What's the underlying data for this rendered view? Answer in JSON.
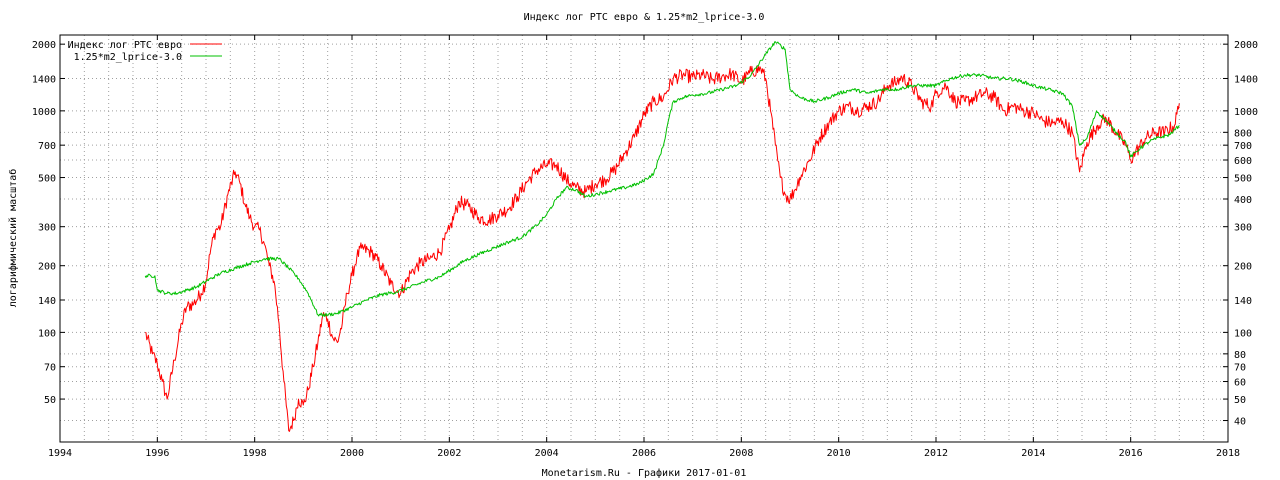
{
  "chart_data": {
    "type": "line",
    "title": "Индекс лог РТС евро & 1.25*m2_lprice-3.0",
    "xlabel": "Monetarism.Ru - Графики 2017-01-01",
    "ylabel": "логарифмический масштаб",
    "x_range": [
      1994,
      2018
    ],
    "y_range": [
      32,
      2200
    ],
    "y_scale": "log",
    "grid": true,
    "legend_position": "top-left",
    "x_ticks": [
      "1994",
      "1996",
      "1998",
      "2000",
      "2002",
      "2004",
      "2006",
      "2008",
      "2010",
      "2012",
      "2014",
      "2016",
      "2018"
    ],
    "y_ticks_left": [
      "50",
      "70",
      "100",
      "140",
      "200",
      "300",
      "500",
      "700",
      "1000",
      "1400",
      "2000"
    ],
    "y_ticks_right": [
      "40",
      "50",
      "60",
      "70",
      "80",
      "100",
      "140",
      "200",
      "300",
      "400",
      "500",
      "600",
      "700",
      "800",
      "1000",
      "1400",
      "2000"
    ],
    "series": [
      {
        "name": "Индекс лог РТС евро",
        "color": "#ff0000",
        "points": [
          [
            1995.75,
            100
          ],
          [
            1995.9,
            80
          ],
          [
            1996.0,
            72
          ],
          [
            1996.1,
            60
          ],
          [
            1996.2,
            50
          ],
          [
            1996.35,
            75
          ],
          [
            1996.5,
            110
          ],
          [
            1996.6,
            130
          ],
          [
            1996.75,
            135
          ],
          [
            1996.9,
            150
          ],
          [
            1997.0,
            170
          ],
          [
            1997.1,
            240
          ],
          [
            1997.2,
            290
          ],
          [
            1997.3,
            300
          ],
          [
            1997.45,
            420
          ],
          [
            1997.6,
            530
          ],
          [
            1997.7,
            470
          ],
          [
            1997.8,
            380
          ],
          [
            1997.9,
            330
          ],
          [
            1998.0,
            300
          ],
          [
            1998.1,
            290
          ],
          [
            1998.2,
            250
          ],
          [
            1998.3,
            200
          ],
          [
            1998.4,
            170
          ],
          [
            1998.5,
            110
          ],
          [
            1998.6,
            60
          ],
          [
            1998.7,
            36
          ],
          [
            1998.8,
            40
          ],
          [
            1998.9,
            50
          ],
          [
            1999.0,
            47
          ],
          [
            1999.1,
            55
          ],
          [
            1999.2,
            70
          ],
          [
            1999.3,
            90
          ],
          [
            1999.4,
            120
          ],
          [
            1999.5,
            115
          ],
          [
            1999.6,
            95
          ],
          [
            1999.7,
            90
          ],
          [
            1999.8,
            110
          ],
          [
            1999.9,
            150
          ],
          [
            2000.0,
            180
          ],
          [
            2000.1,
            220
          ],
          [
            2000.2,
            240
          ],
          [
            2000.4,
            230
          ],
          [
            2000.6,
            200
          ],
          [
            2000.8,
            165
          ],
          [
            2001.0,
            150
          ],
          [
            2001.2,
            185
          ],
          [
            2001.4,
            205
          ],
          [
            2001.6,
            215
          ],
          [
            2001.8,
            230
          ],
          [
            2002.0,
            290
          ],
          [
            2002.2,
            390
          ],
          [
            2002.4,
            370
          ],
          [
            2002.6,
            330
          ],
          [
            2002.8,
            320
          ],
          [
            2003.0,
            340
          ],
          [
            2003.2,
            360
          ],
          [
            2003.4,
            410
          ],
          [
            2003.6,
            480
          ],
          [
            2003.8,
            540
          ],
          [
            2004.0,
            570
          ],
          [
            2004.2,
            570
          ],
          [
            2004.4,
            490
          ],
          [
            2004.6,
            450
          ],
          [
            2004.8,
            430
          ],
          [
            2005.0,
            470
          ],
          [
            2005.2,
            490
          ],
          [
            2005.4,
            540
          ],
          [
            2005.6,
            640
          ],
          [
            2005.8,
            760
          ],
          [
            2006.0,
            960
          ],
          [
            2006.2,
            1100
          ],
          [
            2006.4,
            1150
          ],
          [
            2006.6,
            1400
          ],
          [
            2006.8,
            1450
          ],
          [
            2007.0,
            1420
          ],
          [
            2007.2,
            1450
          ],
          [
            2007.4,
            1380
          ],
          [
            2007.6,
            1430
          ],
          [
            2007.8,
            1470
          ],
          [
            2008.0,
            1350
          ],
          [
            2008.2,
            1500
          ],
          [
            2008.4,
            1550
          ],
          [
            2008.5,
            1400
          ],
          [
            2008.6,
            1000
          ],
          [
            2008.7,
            700
          ],
          [
            2008.8,
            500
          ],
          [
            2008.9,
            420
          ],
          [
            2009.0,
            400
          ],
          [
            2009.1,
            440
          ],
          [
            2009.2,
            500
          ],
          [
            2009.4,
            600
          ],
          [
            2009.6,
            750
          ],
          [
            2009.8,
            880
          ],
          [
            2010.0,
            1000
          ],
          [
            2010.2,
            1050
          ],
          [
            2010.4,
            1000
          ],
          [
            2010.6,
            1050
          ],
          [
            2010.8,
            1100
          ],
          [
            2011.0,
            1300
          ],
          [
            2011.2,
            1350
          ],
          [
            2011.3,
            1420
          ],
          [
            2011.5,
            1300
          ],
          [
            2011.7,
            1100
          ],
          [
            2011.9,
            1050
          ],
          [
            2012.0,
            1200
          ],
          [
            2012.2,
            1300
          ],
          [
            2012.4,
            1100
          ],
          [
            2012.6,
            1100
          ],
          [
            2012.8,
            1150
          ],
          [
            2013.0,
            1200
          ],
          [
            2013.2,
            1150
          ],
          [
            2013.4,
            1000
          ],
          [
            2013.6,
            1050
          ],
          [
            2013.8,
            1000
          ],
          [
            2014.0,
            980
          ],
          [
            2014.2,
            900
          ],
          [
            2014.4,
            880
          ],
          [
            2014.6,
            900
          ],
          [
            2014.8,
            800
          ],
          [
            2014.95,
            530
          ],
          [
            2015.1,
            720
          ],
          [
            2015.3,
            850
          ],
          [
            2015.4,
            900
          ],
          [
            2015.5,
            920
          ],
          [
            2015.7,
            800
          ],
          [
            2015.9,
            700
          ],
          [
            2016.0,
            600
          ],
          [
            2016.1,
            650
          ],
          [
            2016.3,
            750
          ],
          [
            2016.5,
            800
          ],
          [
            2016.7,
            800
          ],
          [
            2016.9,
            860
          ],
          [
            2017.0,
            1080
          ]
        ]
      },
      {
        "name": "1.25*m2_lprice-3.0",
        "color": "#00c000",
        "points": [
          [
            1995.75,
            180
          ],
          [
            1995.95,
            180
          ],
          [
            1996.0,
            155
          ],
          [
            1996.2,
            150
          ],
          [
            1996.4,
            150
          ],
          [
            1996.6,
            155
          ],
          [
            1996.8,
            160
          ],
          [
            1997.0,
            170
          ],
          [
            1997.3,
            185
          ],
          [
            1997.6,
            195
          ],
          [
            1997.9,
            205
          ],
          [
            1998.2,
            215
          ],
          [
            1998.5,
            215
          ],
          [
            1998.7,
            195
          ],
          [
            1998.9,
            175
          ],
          [
            1999.1,
            150
          ],
          [
            1999.3,
            120
          ],
          [
            1999.5,
            120
          ],
          [
            1999.7,
            122
          ],
          [
            2000.0,
            130
          ],
          [
            2000.3,
            140
          ],
          [
            2000.6,
            148
          ],
          [
            2000.9,
            152
          ],
          [
            2001.2,
            160
          ],
          [
            2001.5,
            170
          ],
          [
            2001.8,
            178
          ],
          [
            2002.0,
            190
          ],
          [
            2002.3,
            210
          ],
          [
            2002.6,
            225
          ],
          [
            2002.9,
            240
          ],
          [
            2003.2,
            255
          ],
          [
            2003.5,
            270
          ],
          [
            2003.8,
            305
          ],
          [
            2004.0,
            340
          ],
          [
            2004.2,
            400
          ],
          [
            2004.4,
            450
          ],
          [
            2004.6,
            440
          ],
          [
            2004.8,
            410
          ],
          [
            2005.0,
            420
          ],
          [
            2005.3,
            435
          ],
          [
            2005.6,
            450
          ],
          [
            2005.9,
            470
          ],
          [
            2006.2,
            520
          ],
          [
            2006.4,
            700
          ],
          [
            2006.5,
            900
          ],
          [
            2006.6,
            1100
          ],
          [
            2006.8,
            1150
          ],
          [
            2007.0,
            1180
          ],
          [
            2007.3,
            1200
          ],
          [
            2007.6,
            1250
          ],
          [
            2007.9,
            1300
          ],
          [
            2008.2,
            1450
          ],
          [
            2008.5,
            1800
          ],
          [
            2008.7,
            2050
          ],
          [
            2008.9,
            1900
          ],
          [
            2009.0,
            1250
          ],
          [
            2009.2,
            1150
          ],
          [
            2009.5,
            1100
          ],
          [
            2009.8,
            1150
          ],
          [
            2010.0,
            1200
          ],
          [
            2010.3,
            1250
          ],
          [
            2010.6,
            1200
          ],
          [
            2010.9,
            1250
          ],
          [
            2011.2,
            1250
          ],
          [
            2011.5,
            1300
          ],
          [
            2011.8,
            1300
          ],
          [
            2012.0,
            1300
          ],
          [
            2012.3,
            1400
          ],
          [
            2012.6,
            1450
          ],
          [
            2012.9,
            1450
          ],
          [
            2013.2,
            1400
          ],
          [
            2013.5,
            1400
          ],
          [
            2013.8,
            1350
          ],
          [
            2014.0,
            1300
          ],
          [
            2014.3,
            1250
          ],
          [
            2014.6,
            1200
          ],
          [
            2014.8,
            1050
          ],
          [
            2014.95,
            700
          ],
          [
            2015.1,
            750
          ],
          [
            2015.3,
            1000
          ],
          [
            2015.5,
            900
          ],
          [
            2015.7,
            800
          ],
          [
            2015.9,
            720
          ],
          [
            2016.0,
            620
          ],
          [
            2016.2,
            680
          ],
          [
            2016.4,
            730
          ],
          [
            2016.6,
            760
          ],
          [
            2016.8,
            780
          ],
          [
            2017.0,
            860
          ]
        ]
      }
    ],
    "footer": "Monetarism.Ru - Графики 2017-01-01"
  }
}
